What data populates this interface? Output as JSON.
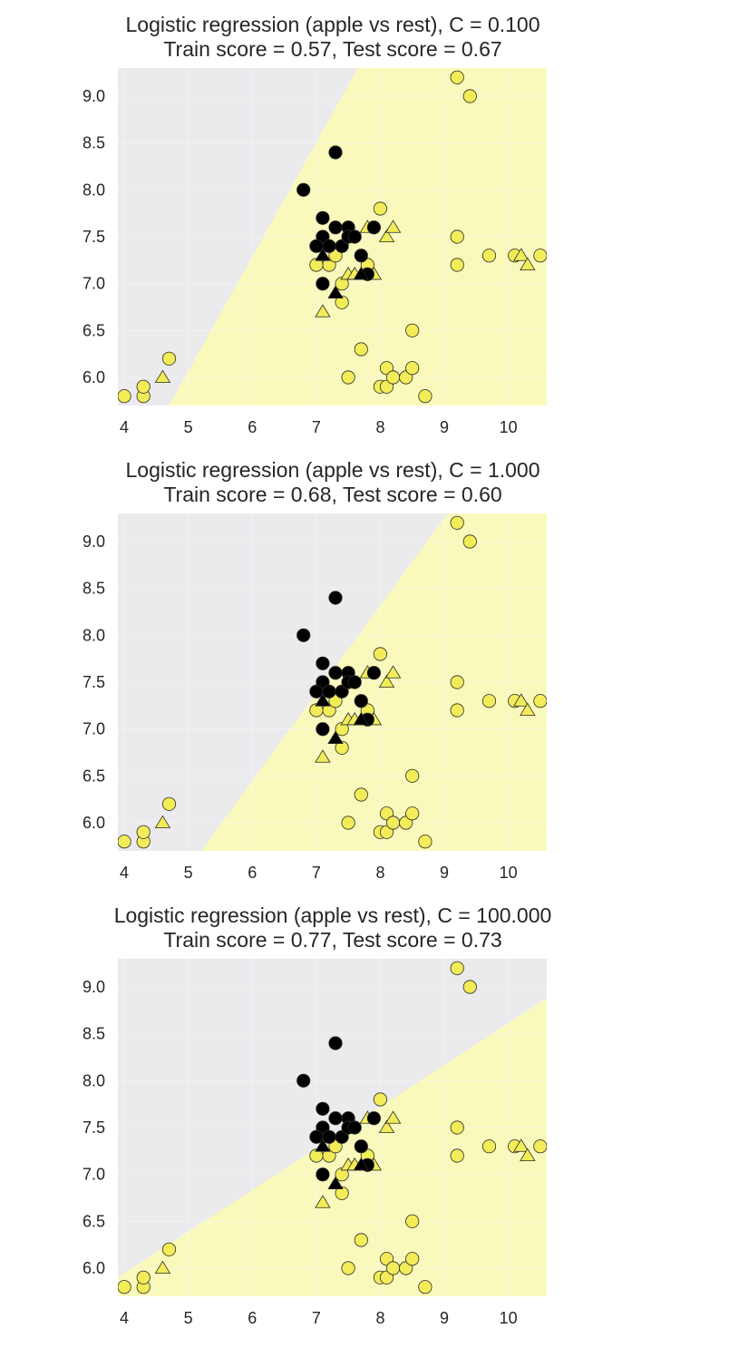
{
  "colors": {
    "axes_background": "#EBEBEE",
    "region_apple": "#FAF9BC",
    "grid": "#F6F6F8",
    "apple_marker": "#F2EC58",
    "rest_marker": "#000000",
    "marker_edge": "#2b2b2b",
    "text": "#262626"
  },
  "chart_data": [
    {
      "type": "scatter",
      "title": "Logistic regression (apple vs rest), C = 0.100",
      "subtitle": "Train score = 0.57, Test score = 0.67",
      "xlim": [
        3.9,
        10.6
      ],
      "ylim": [
        5.7,
        9.3
      ],
      "xticks": [
        "4",
        "5",
        "6",
        "7",
        "8",
        "9",
        "10"
      ],
      "yticks": [
        "6.0",
        "6.5",
        "7.0",
        "7.5",
        "8.0",
        "8.5",
        "9.0"
      ],
      "grid": true,
      "decision_boundary": [
        [
          4.7,
          5.7
        ],
        [
          7.65,
          9.3
        ]
      ]
    },
    {
      "type": "scatter",
      "title": "Logistic regression (apple vs rest), C = 1.000",
      "subtitle": "Train score = 0.68, Test score = 0.60",
      "xlim": [
        3.9,
        10.6
      ],
      "ylim": [
        5.7,
        9.3
      ],
      "xticks": [
        "4",
        "5",
        "6",
        "7",
        "8",
        "9",
        "10"
      ],
      "yticks": [
        "6.0",
        "6.5",
        "7.0",
        "7.5",
        "8.0",
        "8.5",
        "9.0"
      ],
      "grid": true,
      "decision_boundary": [
        [
          5.2,
          5.7
        ],
        [
          9.05,
          9.3
        ]
      ]
    },
    {
      "type": "scatter",
      "title": "Logistic regression (apple vs rest), C = 100.000",
      "subtitle": "Train score = 0.77, Test score = 0.73",
      "xlim": [
        3.9,
        10.6
      ],
      "ylim": [
        5.7,
        9.3
      ],
      "xticks": [
        "4",
        "5",
        "6",
        "7",
        "8",
        "9",
        "10"
      ],
      "yticks": [
        "6.0",
        "6.5",
        "7.0",
        "7.5",
        "8.0",
        "8.5",
        "9.0"
      ],
      "grid": true,
      "decision_boundary": [
        [
          3.9,
          5.9
        ],
        [
          10.6,
          8.88
        ]
      ]
    }
  ],
  "points": {
    "apple_train": [
      [
        4.3,
        5.8
      ],
      [
        4.3,
        5.9
      ],
      [
        4.7,
        6.2
      ],
      [
        7.1,
        7.4
      ],
      [
        7.2,
        7.2
      ],
      [
        7.3,
        7.3
      ],
      [
        7.4,
        7.0
      ],
      [
        7.4,
        6.8
      ],
      [
        7.5,
        6.0
      ],
      [
        7.7,
        6.3
      ],
      [
        7.8,
        7.2
      ],
      [
        8.0,
        7.8
      ],
      [
        8.0,
        5.9
      ],
      [
        8.1,
        6.1
      ],
      [
        8.1,
        5.9
      ],
      [
        8.2,
        6.0
      ],
      [
        8.4,
        6.0
      ],
      [
        8.5,
        6.5
      ],
      [
        8.5,
        6.1
      ],
      [
        8.7,
        5.8
      ],
      [
        9.2,
        9.2
      ],
      [
        9.4,
        9.0
      ],
      [
        9.2,
        7.5
      ],
      [
        9.2,
        7.2
      ],
      [
        9.7,
        7.3
      ],
      [
        10.1,
        7.3
      ],
      [
        10.5,
        7.3
      ],
      [
        7.0,
        7.2
      ],
      [
        4.0,
        5.8
      ]
    ],
    "apple_test": [
      [
        4.6,
        6.0
      ],
      [
        7.1,
        6.7
      ],
      [
        7.5,
        7.1
      ],
      [
        7.6,
        7.1
      ],
      [
        7.9,
        7.1
      ],
      [
        7.8,
        7.6
      ],
      [
        8.1,
        7.5
      ],
      [
        8.2,
        7.6
      ],
      [
        10.2,
        7.3
      ],
      [
        10.3,
        7.2
      ]
    ],
    "rest_train": [
      [
        6.8,
        8.0
      ],
      [
        7.3,
        8.4
      ],
      [
        7.1,
        7.7
      ],
      [
        7.1,
        7.5
      ],
      [
        7.0,
        7.4
      ],
      [
        7.2,
        7.4
      ],
      [
        7.3,
        7.6
      ],
      [
        7.4,
        7.4
      ],
      [
        7.5,
        7.6
      ],
      [
        7.5,
        7.5
      ],
      [
        7.6,
        7.5
      ],
      [
        7.7,
        7.3
      ],
      [
        7.9,
        7.6
      ],
      [
        7.1,
        7.0
      ],
      [
        7.8,
        7.1
      ]
    ],
    "rest_test": [
      [
        7.1,
        7.3
      ],
      [
        7.3,
        6.9
      ],
      [
        7.7,
        7.1
      ]
    ]
  }
}
